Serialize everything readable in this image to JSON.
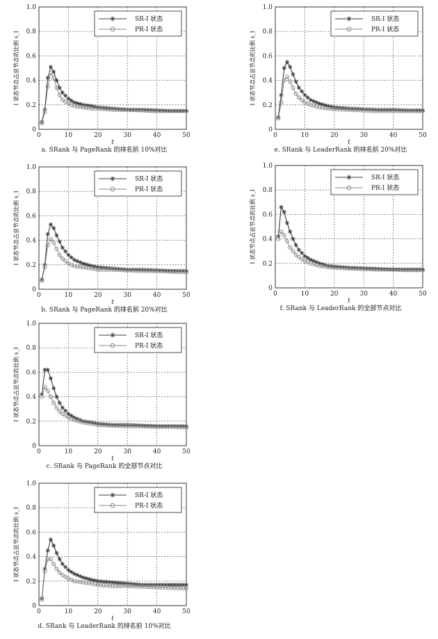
{
  "chart_data": [
    {
      "id": "a",
      "type": "line",
      "caption": "a. SRank 与 PageRank 的排名前 10%对比",
      "xlabel": "t",
      "ylabel": "I 状态节点占总节点的比例 s_I",
      "xlim": [
        0,
        50
      ],
      "ylim": [
        0,
        1.0
      ],
      "xticks": [
        "0",
        "10",
        "20",
        "30",
        "40",
        "50"
      ],
      "yticks": [
        "0",
        "0.2",
        "0.4",
        "0.6",
        "0.8",
        "1.0"
      ],
      "grid": true,
      "legend": "top-right",
      "series": [
        {
          "name": "SR-I 状态",
          "marker": "star",
          "x": [
            1,
            2,
            3,
            4,
            5,
            6,
            7,
            8,
            10,
            12,
            15,
            18,
            20,
            25,
            30,
            35,
            40,
            45,
            50
          ],
          "y": [
            0.06,
            0.16,
            0.42,
            0.51,
            0.47,
            0.4,
            0.34,
            0.3,
            0.25,
            0.22,
            0.2,
            0.19,
            0.18,
            0.17,
            0.16,
            0.16,
            0.155,
            0.15,
            0.15
          ]
        },
        {
          "name": "PR-I 状态",
          "marker": "circle",
          "x": [
            1,
            2,
            3,
            4,
            5,
            6,
            7,
            8,
            10,
            12,
            15,
            18,
            20,
            25,
            30,
            35,
            40,
            45,
            50
          ],
          "y": [
            0.05,
            0.14,
            0.35,
            0.46,
            0.42,
            0.34,
            0.28,
            0.24,
            0.21,
            0.19,
            0.18,
            0.17,
            0.17,
            0.16,
            0.16,
            0.155,
            0.15,
            0.15,
            0.15
          ]
        }
      ]
    },
    {
      "id": "b",
      "type": "line",
      "caption": "b. SRank 与 PageRank 的排名前 20%对比",
      "xlabel": "t",
      "ylabel": "I 状态节点占总节点的比例 s_I",
      "xlim": [
        0,
        50
      ],
      "ylim": [
        0,
        1.0
      ],
      "xticks": [
        "0",
        "10",
        "20",
        "30",
        "40",
        "50"
      ],
      "yticks": [
        "0",
        "0.2",
        "0.4",
        "0.6",
        "0.8",
        "1.0"
      ],
      "grid": true,
      "legend": "top-right",
      "series": [
        {
          "name": "SR-I 状态",
          "marker": "star",
          "x": [
            1,
            2,
            3,
            4,
            5,
            6,
            7,
            8,
            10,
            12,
            15,
            18,
            20,
            25,
            30,
            35,
            40,
            45,
            50
          ],
          "y": [
            0.08,
            0.2,
            0.45,
            0.53,
            0.5,
            0.44,
            0.39,
            0.34,
            0.28,
            0.24,
            0.21,
            0.19,
            0.18,
            0.17,
            0.16,
            0.16,
            0.155,
            0.15,
            0.15
          ]
        },
        {
          "name": "PR-I 状态",
          "marker": "circle",
          "x": [
            1,
            2,
            3,
            4,
            5,
            6,
            7,
            8,
            10,
            12,
            15,
            18,
            20,
            25,
            30,
            35,
            40,
            45,
            50
          ],
          "y": [
            0.07,
            0.18,
            0.36,
            0.41,
            0.38,
            0.33,
            0.28,
            0.25,
            0.21,
            0.19,
            0.18,
            0.17,
            0.16,
            0.16,
            0.155,
            0.15,
            0.15,
            0.145,
            0.14
          ]
        }
      ]
    },
    {
      "id": "c",
      "type": "line",
      "caption": "c. SRank 与 PageRank 的全部节点对比",
      "xlabel": "t",
      "ylabel": "I 状态节点占总节点的比例 s_I",
      "xlim": [
        0,
        50
      ],
      "ylim": [
        0,
        1.0
      ],
      "xticks": [
        "0",
        "10",
        "20",
        "30",
        "40",
        "50"
      ],
      "yticks": [
        "0",
        "0.2",
        "0.4",
        "0.6",
        "0.8",
        "1.0"
      ],
      "grid": true,
      "legend": "top-right",
      "series": [
        {
          "name": "SR-I 状态",
          "marker": "star",
          "x": [
            1,
            2,
            3,
            4,
            5,
            6,
            7,
            8,
            10,
            12,
            15,
            18,
            20,
            25,
            30,
            35,
            40,
            45,
            50
          ],
          "y": [
            0.42,
            0.62,
            0.62,
            0.55,
            0.47,
            0.4,
            0.35,
            0.31,
            0.26,
            0.23,
            0.2,
            0.19,
            0.18,
            0.17,
            0.17,
            0.165,
            0.16,
            0.16,
            0.16
          ]
        },
        {
          "name": "PR-I 状态",
          "marker": "circle",
          "x": [
            1,
            2,
            3,
            4,
            5,
            6,
            7,
            8,
            10,
            12,
            15,
            18,
            20,
            25,
            30,
            35,
            40,
            45,
            50
          ],
          "y": [
            0.4,
            0.48,
            0.45,
            0.4,
            0.35,
            0.31,
            0.28,
            0.26,
            0.23,
            0.21,
            0.19,
            0.18,
            0.17,
            0.165,
            0.16,
            0.16,
            0.155,
            0.155,
            0.15
          ]
        }
      ]
    },
    {
      "id": "d",
      "type": "line",
      "caption": "d. SRank 与 LeaderRank 的排名前 10%对比",
      "xlabel": "t",
      "ylabel": "I 状态节点占总节点的比例 s_I",
      "xlim": [
        0,
        50
      ],
      "ylim": [
        0,
        1.0
      ],
      "xticks": [
        "0",
        "10",
        "20",
        "30",
        "40",
        "50"
      ],
      "yticks": [
        "0",
        "0.2",
        "0.4",
        "0.6",
        "0.8",
        "1.0"
      ],
      "grid": true,
      "legend": "top-right",
      "series": [
        {
          "name": "SR-I 状态",
          "marker": "star",
          "x": [
            1,
            2,
            3,
            4,
            5,
            6,
            7,
            8,
            10,
            12,
            15,
            18,
            20,
            25,
            30,
            35,
            40,
            45,
            50
          ],
          "y": [
            0.06,
            0.3,
            0.45,
            0.54,
            0.49,
            0.43,
            0.38,
            0.34,
            0.29,
            0.26,
            0.23,
            0.21,
            0.2,
            0.19,
            0.18,
            0.17,
            0.17,
            0.17,
            0.17
          ]
        },
        {
          "name": "PR-I 状态",
          "marker": "circle",
          "x": [
            1,
            2,
            3,
            4,
            5,
            6,
            7,
            8,
            10,
            12,
            15,
            18,
            20,
            25,
            30,
            35,
            40,
            45,
            50
          ],
          "y": [
            0.05,
            0.28,
            0.38,
            0.38,
            0.34,
            0.3,
            0.27,
            0.25,
            0.22,
            0.2,
            0.19,
            0.18,
            0.17,
            0.16,
            0.16,
            0.155,
            0.15,
            0.145,
            0.14
          ]
        }
      ]
    },
    {
      "id": "e",
      "type": "line",
      "caption": "e. SRank 与 LeaderRank 的排名前 20%对比",
      "xlabel": "t",
      "ylabel": "I 状态节点占总节点的比例 s_I",
      "xlim": [
        0,
        50
      ],
      "ylim": [
        0,
        1.0
      ],
      "xticks": [
        "0",
        "10",
        "20",
        "30",
        "40",
        "50"
      ],
      "yticks": [
        "0",
        "0.2",
        "0.4",
        "0.6",
        "0.8",
        "1.0"
      ],
      "grid": true,
      "legend": "top-right",
      "series": [
        {
          "name": "SR-I 状态",
          "marker": "star",
          "x": [
            1,
            2,
            3,
            4,
            5,
            6,
            7,
            8,
            10,
            12,
            15,
            18,
            20,
            25,
            30,
            35,
            40,
            45,
            50
          ],
          "y": [
            0.1,
            0.28,
            0.5,
            0.55,
            0.51,
            0.45,
            0.39,
            0.34,
            0.28,
            0.24,
            0.21,
            0.19,
            0.18,
            0.17,
            0.165,
            0.16,
            0.16,
            0.155,
            0.155
          ]
        },
        {
          "name": "PR-I 状态",
          "marker": "circle",
          "x": [
            1,
            2,
            3,
            4,
            5,
            6,
            7,
            8,
            10,
            12,
            15,
            18,
            20,
            25,
            30,
            35,
            40,
            45,
            50
          ],
          "y": [
            0.09,
            0.22,
            0.4,
            0.43,
            0.39,
            0.34,
            0.29,
            0.26,
            0.22,
            0.2,
            0.18,
            0.17,
            0.165,
            0.16,
            0.155,
            0.15,
            0.15,
            0.15,
            0.15
          ]
        }
      ]
    },
    {
      "id": "f",
      "type": "line",
      "caption": "f. SRank 与 LeaderRank 的全部节点对比",
      "xlabel": "t",
      "ylabel": "I 状态节点占总节点的比例 s_I",
      "xlim": [
        0,
        50
      ],
      "ylim": [
        0,
        1.0
      ],
      "xticks": [
        "0",
        "10",
        "20",
        "30",
        "40",
        "50"
      ],
      "yticks": [
        "0",
        "0.2",
        "0.4",
        "0.6",
        "0.8",
        "1.0"
      ],
      "grid": true,
      "legend": "top-right",
      "series": [
        {
          "name": "SR-I 状态",
          "marker": "star",
          "x": [
            1,
            2,
            3,
            4,
            5,
            6,
            7,
            8,
            10,
            12,
            15,
            18,
            20,
            25,
            30,
            35,
            40,
            45,
            50
          ],
          "y": [
            0.42,
            0.66,
            0.62,
            0.53,
            0.46,
            0.4,
            0.35,
            0.31,
            0.26,
            0.23,
            0.2,
            0.18,
            0.175,
            0.165,
            0.16,
            0.155,
            0.15,
            0.15,
            0.15
          ]
        },
        {
          "name": "PR-I 状态",
          "marker": "circle",
          "x": [
            1,
            2,
            3,
            4,
            5,
            6,
            7,
            8,
            10,
            12,
            15,
            18,
            20,
            25,
            30,
            35,
            40,
            45,
            50
          ],
          "y": [
            0.4,
            0.46,
            0.43,
            0.38,
            0.33,
            0.3,
            0.27,
            0.25,
            0.22,
            0.2,
            0.18,
            0.17,
            0.165,
            0.16,
            0.155,
            0.15,
            0.15,
            0.145,
            0.145
          ]
        }
      ]
    }
  ]
}
